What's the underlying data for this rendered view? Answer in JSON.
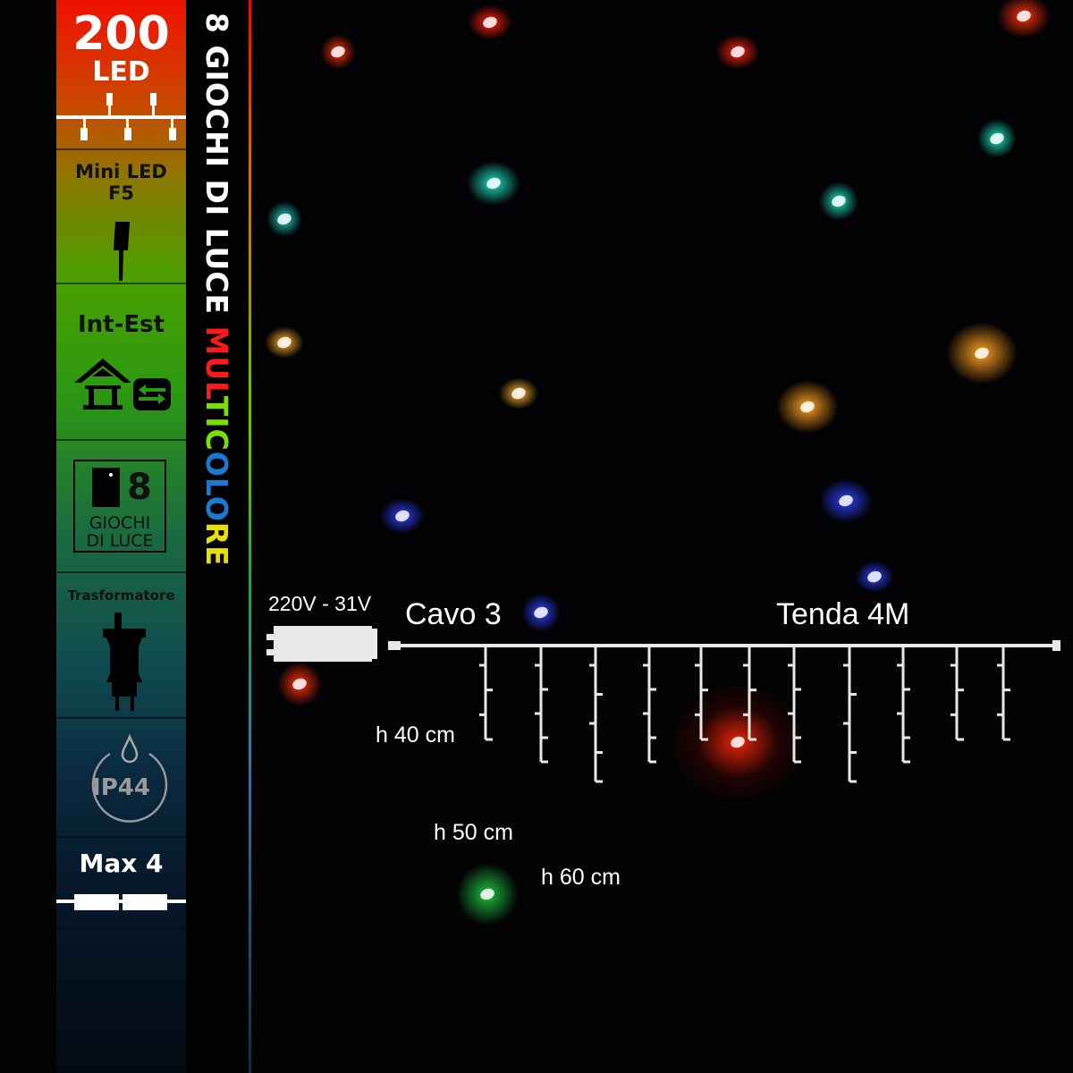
{
  "sidebar": {
    "led_count": "200",
    "led_label": "LED",
    "mini_led": "Mini LED",
    "led_type": "F5",
    "usage": "Int-Est",
    "modes_number": "8",
    "modes_line1": "GIOCHI",
    "modes_line2": "DI LUCE",
    "transformer": "Trasformatore",
    "ip_rating": "IP44",
    "max_connect": "Max 4"
  },
  "vertical_title": {
    "part1": "8 GIOCHI DI LUCE ",
    "letters": [
      {
        "ch": "M",
        "color": "#ff1a1a"
      },
      {
        "ch": "U",
        "color": "#ff1a1a"
      },
      {
        "ch": "L",
        "color": "#ff1a1a"
      },
      {
        "ch": "T",
        "color": "#7ae000"
      },
      {
        "ch": "I",
        "color": "#7ae000"
      },
      {
        "ch": "C",
        "color": "#7ae000"
      },
      {
        "ch": "O",
        "color": "#1a7ad0"
      },
      {
        "ch": "L",
        "color": "#1a7ad0"
      },
      {
        "ch": "O",
        "color": "#1a7ad0"
      },
      {
        "ch": "R",
        "color": "#e8e000"
      },
      {
        "ch": "E",
        "color": "#e8e000"
      }
    ]
  },
  "diagram": {
    "voltage": "220V - 31V",
    "cable": "Cavo 3",
    "curtain": "Tenda 4M",
    "height_labels": [
      "h 40 cm",
      "h 50 cm",
      "h 60 cm"
    ],
    "drops_cm": [
      40,
      50,
      60,
      50,
      40,
      40,
      50,
      60,
      50,
      40,
      40
    ]
  },
  "colors": {
    "line": "#e8e8e8",
    "red": "#ff2010",
    "cyan": "#20e0c0",
    "warm": "#ffb030",
    "blue": "#2040ff",
    "green": "#20c040"
  }
}
